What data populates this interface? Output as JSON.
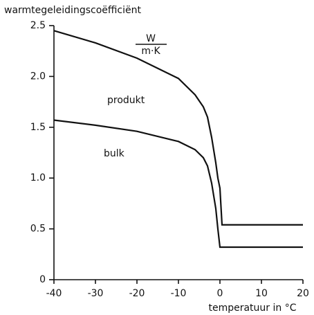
{
  "chart_data": {
    "type": "line",
    "y_label": "warmtegeleidingscoëfficiënt",
    "unit": {
      "numerator": "W",
      "denominator": "m·K"
    },
    "x_label": "temperatuur in °C",
    "series": [
      {
        "name": "produkt",
        "color": "#111111",
        "x": [
          -40,
          -30,
          -20,
          -10,
          -6,
          -4,
          -3,
          -2,
          -1,
          -0.5,
          0,
          0.5,
          20
        ],
        "values": [
          2.45,
          2.33,
          2.18,
          1.98,
          1.82,
          1.7,
          1.6,
          1.4,
          1.15,
          1.0,
          0.9,
          0.54,
          0.54
        ]
      },
      {
        "name": "bulk",
        "color": "#111111",
        "x": [
          -40,
          -30,
          -20,
          -10,
          -6,
          -4,
          -3,
          -2,
          -1,
          -0.5,
          0,
          20
        ],
        "values": [
          1.57,
          1.52,
          1.46,
          1.36,
          1.28,
          1.2,
          1.12,
          0.95,
          0.7,
          0.5,
          0.32,
          0.32
        ]
      }
    ],
    "xlim": [
      -40,
      20
    ],
    "xticks": [
      -40,
      -30,
      -20,
      -10,
      0,
      10,
      20
    ],
    "ylim": [
      0,
      2.5
    ],
    "yticks": [
      0,
      0.5,
      {
        "value": 1,
        "label": "1.0"
      },
      1.5,
      {
        "value": 2,
        "label": "2.0"
      },
      2.5
    ],
    "grid": false
  }
}
